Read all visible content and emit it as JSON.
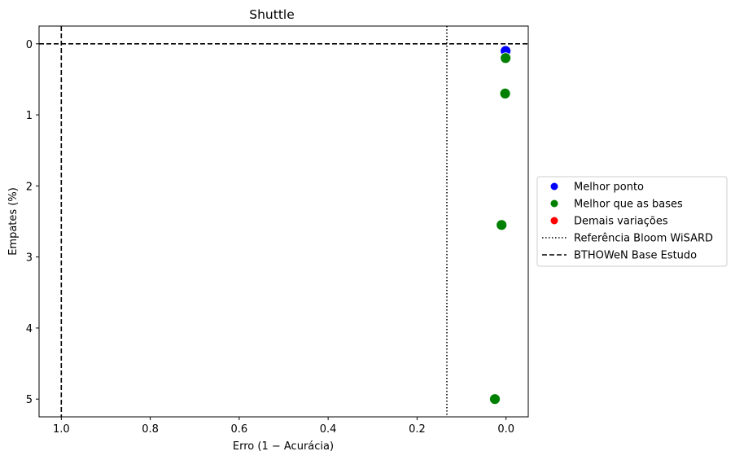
{
  "chart_data": {
    "type": "scatter",
    "title": "Shuttle",
    "xlabel": "Erro (1 − Acurácia)",
    "ylabel": "Empates (%)",
    "xlim": [
      1.05,
      -0.05
    ],
    "ylim": [
      5.25,
      -0.25
    ],
    "x_inverted": true,
    "y_inverted": true,
    "x_ticks": [
      {
        "value": 1.0,
        "label": "1.0"
      },
      {
        "value": 0.8,
        "label": "0.8"
      },
      {
        "value": 0.6,
        "label": "0.6"
      },
      {
        "value": 0.4,
        "label": "0.4"
      },
      {
        "value": 0.2,
        "label": "0.2"
      },
      {
        "value": 0.0,
        "label": "0.0"
      }
    ],
    "y_ticks": [
      {
        "value": 0,
        "label": "0"
      },
      {
        "value": 1,
        "label": "1"
      },
      {
        "value": 2,
        "label": "2"
      },
      {
        "value": 3,
        "label": "3"
      },
      {
        "value": 4,
        "label": "4"
      },
      {
        "value": 5,
        "label": "5"
      }
    ],
    "grid": false,
    "legend_position": "center-right outside",
    "series": [
      {
        "name": "Melhor ponto",
        "color": "#0000ff",
        "marker": "circle",
        "points": [
          {
            "x": 0.001,
            "y": 0.1
          }
        ]
      },
      {
        "name": "Melhor que as bases",
        "color": "#008000",
        "marker": "circle",
        "points": [
          {
            "x": 0.001,
            "y": 0.2
          },
          {
            "x": 0.002,
            "y": 0.7
          },
          {
            "x": 0.01,
            "y": 2.55
          },
          {
            "x": 0.025,
            "y": 5.0
          }
        ]
      },
      {
        "name": "Demais variações",
        "color": "#ff0000",
        "marker": "circle",
        "points": []
      }
    ],
    "reference_lines": [
      {
        "name": "Referência Bloom WiSARD",
        "style": "dotted",
        "color": "#000000",
        "orientation": "vertical",
        "value": 0.133
      },
      {
        "name": "BTHOWeN Base Estudo",
        "style": "dashed",
        "color": "#000000",
        "orientation": "vertical",
        "value": 1.0
      },
      {
        "name": "BTHOWeN Base Estudo",
        "style": "dashed",
        "color": "#000000",
        "orientation": "horizontal",
        "value": 0.0
      }
    ],
    "legend": [
      {
        "label": "Melhor ponto",
        "kind": "marker",
        "color": "#0000ff"
      },
      {
        "label": "Melhor que as bases",
        "kind": "marker",
        "color": "#008000"
      },
      {
        "label": "Demais variações",
        "kind": "marker",
        "color": "#ff0000"
      },
      {
        "label": "Referência Bloom WiSARD",
        "kind": "line",
        "style": "dotted",
        "color": "#000000"
      },
      {
        "label": "BTHOWeN Base Estudo",
        "kind": "line",
        "style": "dashed",
        "color": "#000000"
      }
    ]
  }
}
